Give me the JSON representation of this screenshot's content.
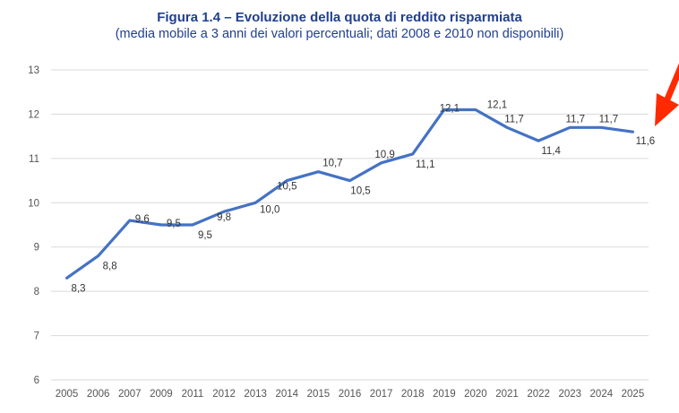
{
  "chart_data": {
    "type": "line",
    "title": "Figura 1.4 – Evoluzione della quota di reddito risparmiata",
    "subtitle": "(media mobile a 3 anni dei valori percentuali; dati 2008 e 2010 non disponibili)",
    "xlabel": "",
    "ylabel": "",
    "categories": [
      "2005",
      "2006",
      "2007",
      "2009",
      "2011",
      "2012",
      "2013",
      "2014",
      "2015",
      "2016",
      "2017",
      "2018",
      "2019",
      "2020",
      "2021",
      "2022",
      "2023",
      "2024",
      "2025"
    ],
    "series": [
      {
        "name": "Quota di reddito risparmiata",
        "color": "#4472c4",
        "values": [
          8.3,
          8.8,
          9.6,
          9.5,
          9.5,
          9.8,
          10.0,
          10.5,
          10.7,
          10.5,
          10.9,
          11.1,
          12.1,
          12.1,
          11.7,
          11.4,
          11.7,
          11.7,
          11.6
        ],
        "labels": [
          "8,3",
          "8,8",
          "9,6",
          "9,5",
          "9,5",
          "9,8",
          "10,0",
          "10,5",
          "10,7",
          "10,5",
          "10,9",
          "11,1",
          "12,1",
          "12,1",
          "11,7",
          "11,4",
          "11,7",
          "11,7",
          "11,6"
        ]
      }
    ],
    "ylim": [
      6,
      13
    ],
    "yticks": [
      6,
      7,
      8,
      9,
      10,
      11,
      12,
      13
    ],
    "grid": true,
    "legend": "none",
    "annotations": [
      {
        "type": "arrow",
        "color": "#ff2a00",
        "points_to": "2025"
      }
    ]
  }
}
